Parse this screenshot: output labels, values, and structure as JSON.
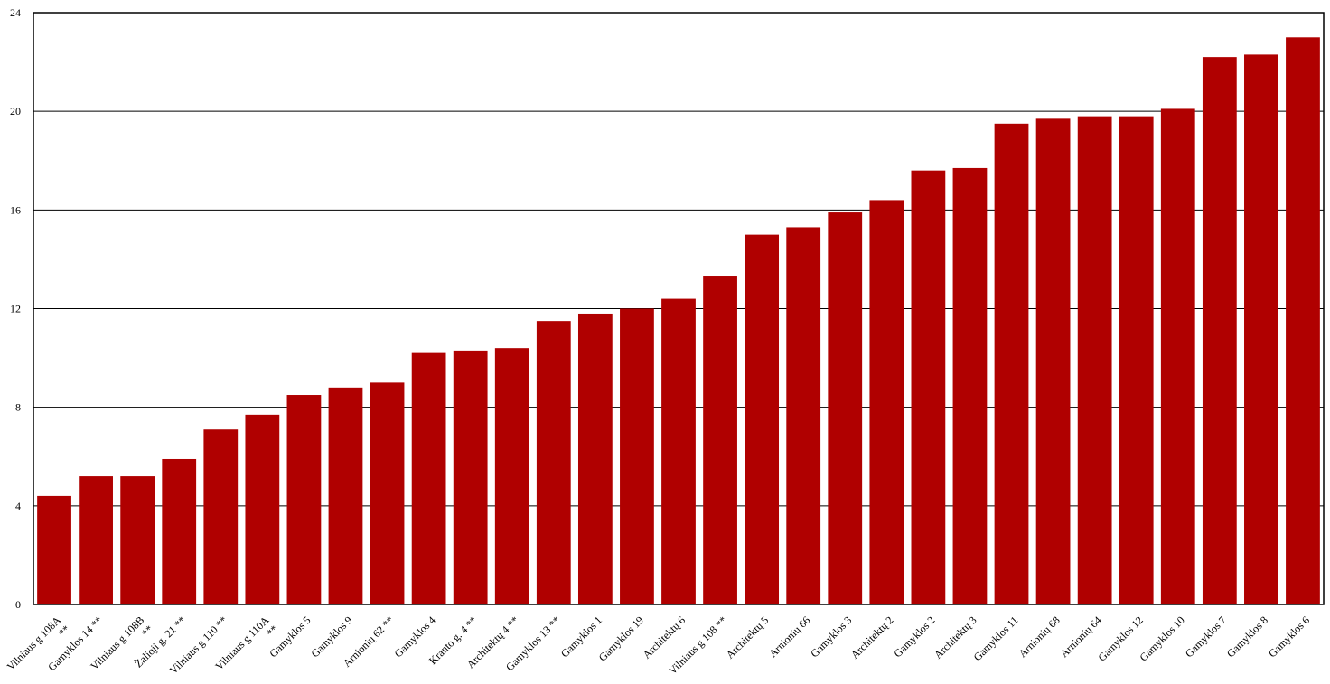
{
  "chart_data": {
    "type": "bar",
    "title": "",
    "xlabel": "",
    "ylabel": "",
    "ylim": [
      0,
      24
    ],
    "yticks": [
      0,
      4,
      8,
      12,
      16,
      20,
      24
    ],
    "grid": true,
    "bar_color": "#b00000",
    "categories": [
      [
        "Vilniaus g 108A",
        "**"
      ],
      [
        "Gamyklos 14 **"
      ],
      [
        "Vilniaus g 108B",
        "**"
      ],
      [
        "Žalioji g. 21 **"
      ],
      [
        "Vilniaus g 110 **"
      ],
      [
        "Vilniaus g 110A",
        "**"
      ],
      [
        "Gamyklos 5"
      ],
      [
        "Gamyklos 9"
      ],
      [
        "Arnionių 62 **"
      ],
      [
        "Gamyklos 4"
      ],
      [
        "Kranto g. 4 **"
      ],
      [
        "Architektų 4 **"
      ],
      [
        "Gamyklos 13 **"
      ],
      [
        "Gamyklos 1"
      ],
      [
        "Gamyklos 19"
      ],
      [
        "Architektų 6"
      ],
      [
        "Vilniaus g 108 **"
      ],
      [
        "Architektų 5"
      ],
      [
        "Arnionių 66"
      ],
      [
        "Gamyklos 3"
      ],
      [
        "Architektų 2"
      ],
      [
        "Gamyklos 2"
      ],
      [
        "Architektų 3"
      ],
      [
        "Gamyklos 11"
      ],
      [
        "Arnionių 68"
      ],
      [
        "Arnionių 64"
      ],
      [
        "Gamyklos 12"
      ],
      [
        "Gamyklos 10"
      ],
      [
        "Gamyklos 7"
      ],
      [
        "Gamyklos 8"
      ],
      [
        "Gamyklos 6"
      ]
    ],
    "values": [
      4.4,
      5.2,
      5.2,
      5.9,
      7.1,
      7.7,
      8.5,
      8.8,
      9.0,
      10.2,
      10.3,
      10.4,
      11.5,
      11.8,
      12.0,
      12.4,
      13.3,
      15.0,
      15.3,
      15.9,
      16.4,
      17.6,
      17.7,
      19.5,
      19.7,
      19.8,
      19.8,
      20.1,
      22.2,
      22.3,
      23.0
    ]
  }
}
